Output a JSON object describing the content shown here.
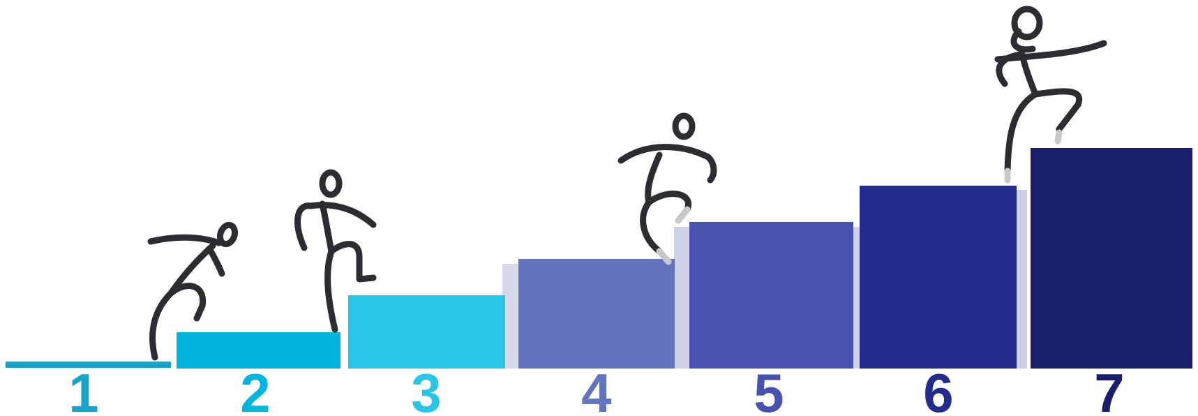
{
  "steps": [
    {
      "label": "1",
      "color": "#1aa3c8"
    },
    {
      "label": "2",
      "color": "#00b4e0"
    },
    {
      "label": "3",
      "color": "#29c5e6"
    },
    {
      "label": "4",
      "color": "#6274bd"
    },
    {
      "label": "5",
      "color": "#4652ad"
    },
    {
      "label": "6",
      "color": "#232c8a"
    },
    {
      "label": "7",
      "color": "#1a1f6b"
    }
  ],
  "figure_icon": "stick-figure-climbing-icon"
}
